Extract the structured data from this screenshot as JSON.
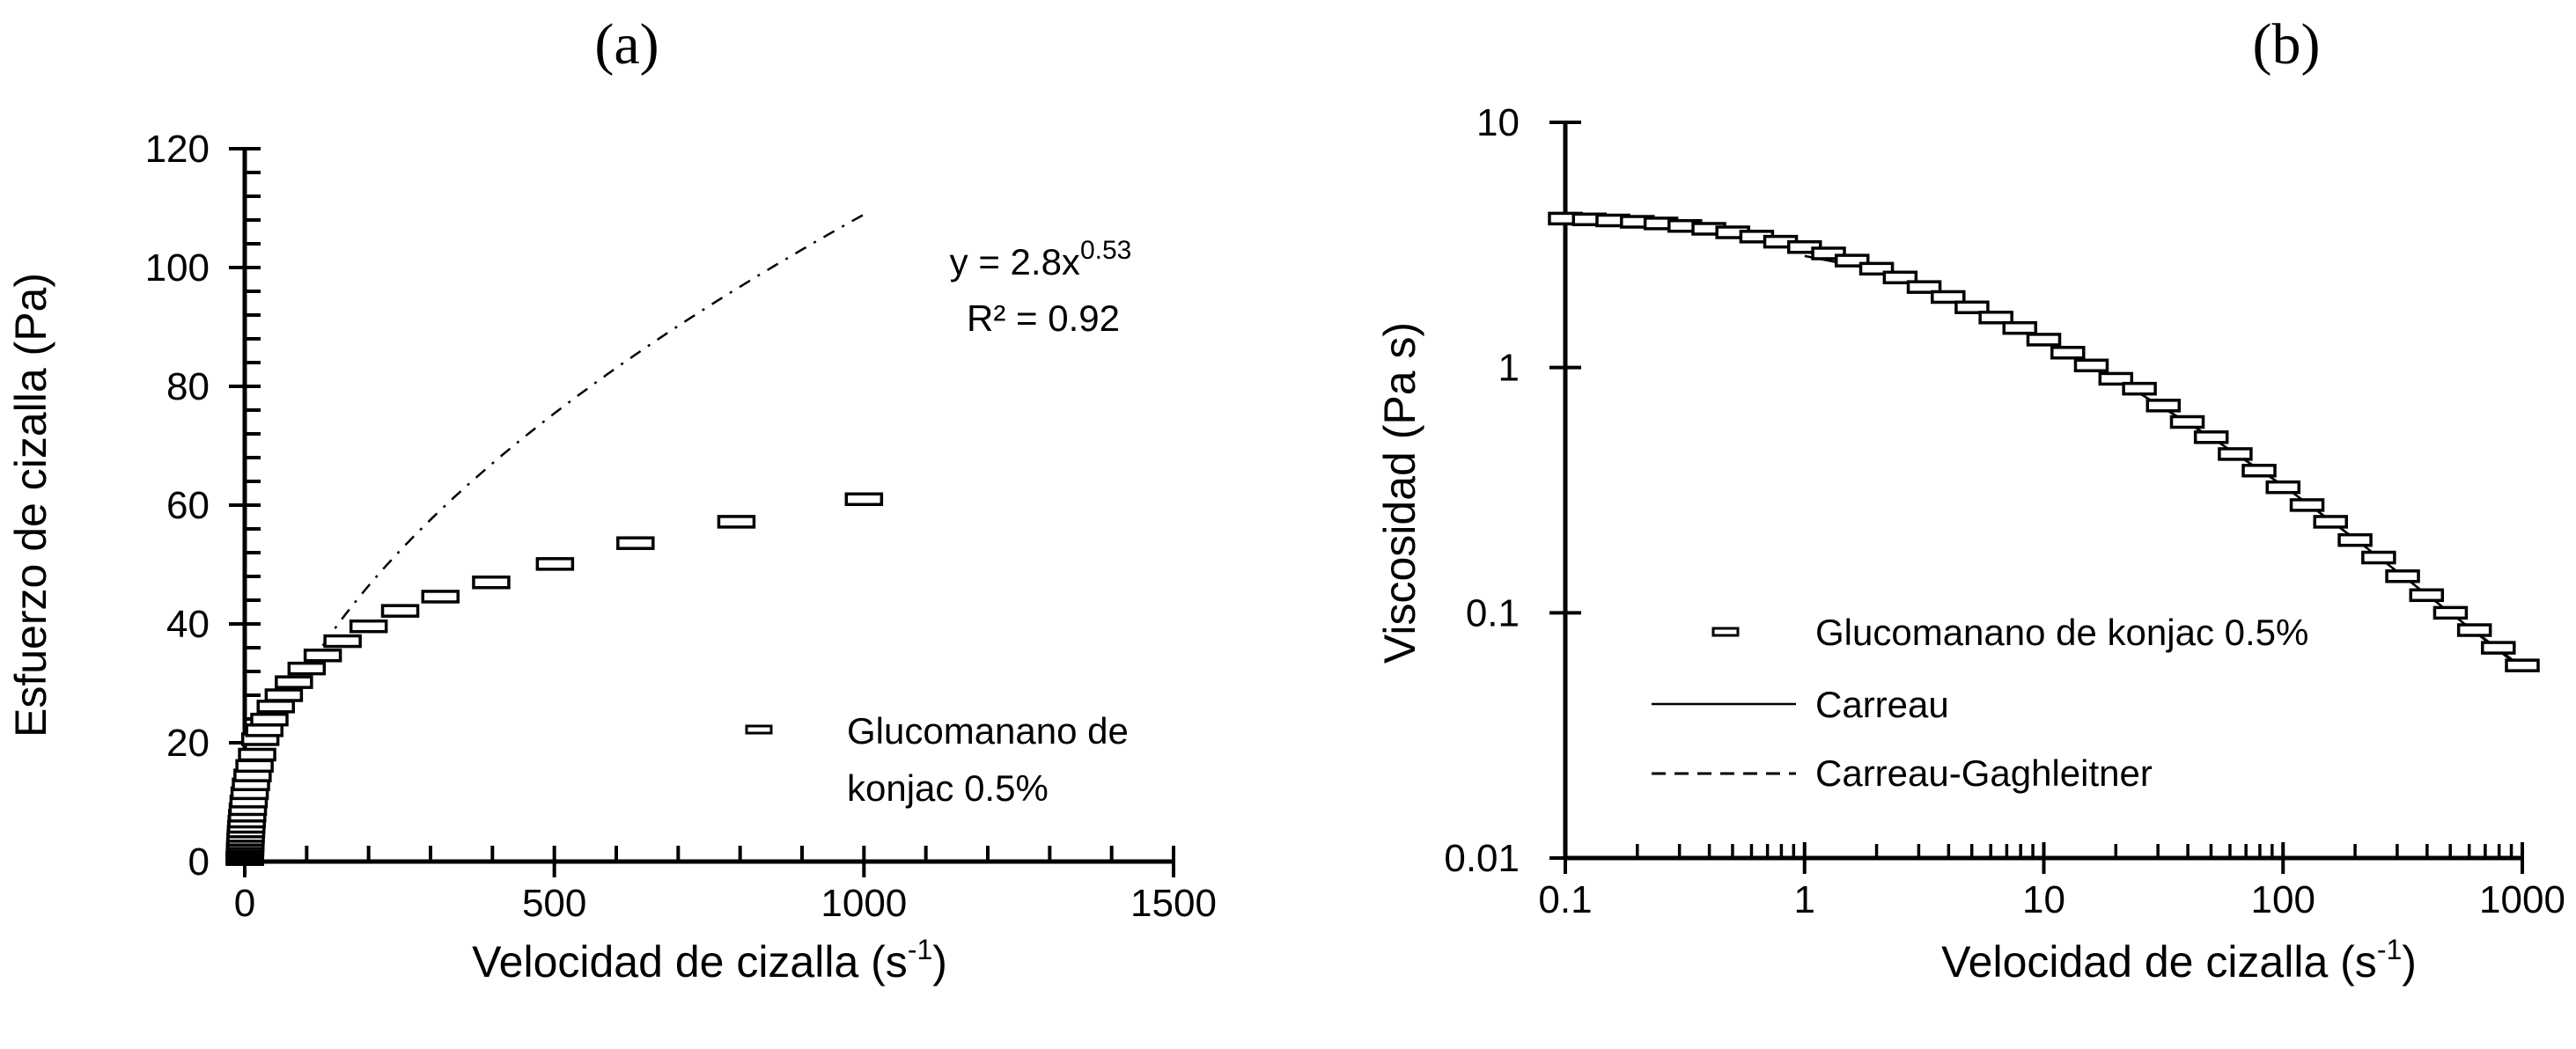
{
  "chart_data": [
    {
      "panel_label": "(a)",
      "type": "scatter",
      "xlabel": "Velocidad de cizalla (s",
      "xlabel_sup": "-1",
      "xlabel_end": ")",
      "ylabel": "Esfuerzo de cizalla (Pa)",
      "xlim": [
        0,
        1500
      ],
      "ylim": [
        0,
        120
      ],
      "xticks": [
        0,
        500,
        1000,
        1500
      ],
      "yticks": [
        0,
        20,
        40,
        60,
        80,
        100,
        120
      ],
      "grid": false,
      "legend_placement": "bottom-right",
      "legend": [
        "Glucomanano de",
        "konjac 0.5%"
      ],
      "series": [
        {
          "name": "Glucomanano de konjac 0.5%",
          "marker": "horizontal-rectangle",
          "x": [
            0.1,
            0.126,
            0.158,
            0.2,
            0.251,
            0.316,
            0.398,
            0.501,
            0.631,
            0.794,
            1,
            1.26,
            1.58,
            2,
            2.51,
            3.16,
            3.98,
            5.01,
            6.31,
            7.94,
            10,
            12.6,
            15.8,
            20,
            25.1,
            31.6,
            39.8,
            50.1,
            63.1,
            79.4,
            100,
            126,
            158,
            200,
            251,
            316,
            398,
            501,
            631,
            794,
            1000
          ],
          "y": [
            0.41,
            0.51,
            0.63,
            0.79,
            0.97,
            1.19,
            1.46,
            1.78,
            2.16,
            2.59,
            3.1,
            3.68,
            4.31,
            5.06,
            5.85,
            6.73,
            7.72,
            8.82,
            10.1,
            11.5,
            13.0,
            14.5,
            16.1,
            18.0,
            20.6,
            22.1,
            23.9,
            26.1,
            28.0,
            30.2,
            32.5,
            34.7,
            37.1,
            39.6,
            42.2,
            44.6,
            47.0,
            50.1,
            53.6,
            57.2,
            61.0
          ]
        }
      ],
      "trendline": {
        "type": "power",
        "coefficient": 2.8,
        "exponent": 0.53,
        "style": "dash-dot",
        "x_range": [
          0.1,
          1000
        ],
        "equation_text": "y = 2.8x",
        "equation_sup": "0.53",
        "r2_text": "R² = 0.92"
      }
    },
    {
      "panel_label": "(b)",
      "type": "scatter",
      "xscale": "log",
      "yscale": "log",
      "xlabel": "Velocidad de cizalla (s",
      "xlabel_sup": "-1",
      "xlabel_end": ")",
      "ylabel": "Viscosidad  (Pa s)",
      "xlim": [
        0.1,
        1000
      ],
      "ylim": [
        0.01,
        10
      ],
      "xticks": [
        "0.1",
        "1",
        "10",
        "100",
        "1000"
      ],
      "yticks": [
        "0.01",
        "0.1",
        "1",
        "10"
      ],
      "grid": false,
      "legend_placement": "bottom-left",
      "legend": [
        "Glucomanano de konjac 0.5%",
        "Carreau",
        "Carreau-Gaghleitner"
      ],
      "series": [
        {
          "name": "Glucomanano de konjac 0.5%",
          "marker": "horizontal-rectangle",
          "x": [
            0.1,
            0.126,
            0.158,
            0.2,
            0.251,
            0.316,
            0.398,
            0.501,
            0.631,
            0.794,
            1,
            1.26,
            1.58,
            2,
            2.51,
            3.16,
            3.98,
            5.01,
            6.31,
            7.94,
            10,
            12.6,
            15.8,
            20,
            25.1,
            31.6,
            39.8,
            50.1,
            63.1,
            79.4,
            100,
            126,
            158,
            200,
            251,
            316,
            398,
            501,
            631,
            794,
            1000
          ],
          "y": [
            4.05,
            4.02,
            3.98,
            3.93,
            3.87,
            3.78,
            3.68,
            3.56,
            3.42,
            3.26,
            3.1,
            2.92,
            2.73,
            2.53,
            2.33,
            2.13,
            1.94,
            1.76,
            1.6,
            1.45,
            1.3,
            1.15,
            1.02,
            0.9,
            0.82,
            0.7,
            0.6,
            0.52,
            0.444,
            0.38,
            0.325,
            0.275,
            0.235,
            0.198,
            0.168,
            0.141,
            0.118,
            0.1,
            0.085,
            0.072,
            0.061
          ]
        },
        {
          "name": "Carreau",
          "style": "solid",
          "x": [
            1,
            2,
            3,
            5,
            7,
            10,
            20,
            50,
            100,
            200,
            500,
            1000
          ],
          "y": [
            2.85,
            2.5,
            2.22,
            1.8,
            1.55,
            1.3,
            0.9,
            0.52,
            0.33,
            0.2,
            0.1,
            0.059
          ]
        },
        {
          "name": "Carreau-Gaghleitner",
          "style": "dashed",
          "x": [
            0.1,
            0.2,
            0.5,
            1,
            2,
            5,
            10,
            20,
            50,
            100,
            200,
            500,
            1000
          ],
          "y": [
            4.0,
            3.92,
            3.58,
            3.1,
            2.53,
            1.78,
            1.3,
            0.9,
            0.52,
            0.33,
            0.2,
            0.1,
            0.06
          ]
        }
      ]
    }
  ]
}
